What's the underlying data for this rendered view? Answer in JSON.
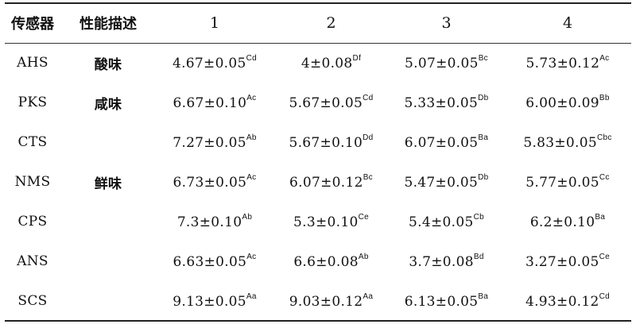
{
  "headers": [
    "传感器",
    "性能描述",
    "1",
    "2",
    "3",
    "4"
  ],
  "rows": [
    {
      "sensor": "AHS",
      "desc": "酸味",
      "cells": [
        {
          "v": "4.67±0.05",
          "s": "Cd"
        },
        {
          "v": "4±0.08",
          "s": "Df"
        },
        {
          "v": "5.07±0.05",
          "s": "Bc"
        },
        {
          "v": "5.73±0.12",
          "s": "Ac"
        }
      ]
    },
    {
      "sensor": "PKS",
      "desc": "咸味",
      "cells": [
        {
          "v": "6.67±0.10",
          "s": "Ac"
        },
        {
          "v": "5.67±0.05",
          "s": "Cd"
        },
        {
          "v": "5.33±0.05",
          "s": "Db"
        },
        {
          "v": "6.00±0.09",
          "s": "Bb"
        }
      ]
    },
    {
      "sensor": "CTS",
      "desc": "",
      "cells": [
        {
          "v": "7.27±0.05",
          "s": "Ab"
        },
        {
          "v": "5.67±0.10",
          "s": "Dd"
        },
        {
          "v": "6.07±0.05",
          "s": "Ba"
        },
        {
          "v": "5.83±0.05",
          "s": "Cbc"
        }
      ]
    },
    {
      "sensor": "NMS",
      "desc": "鲜味",
      "cells": [
        {
          "v": "6.73±0.05",
          "s": "Ac"
        },
        {
          "v": "6.07±0.12",
          "s": "Bc"
        },
        {
          "v": "5.47±0.05",
          "s": "Db"
        },
        {
          "v": "5.77±0.05",
          "s": "Cc"
        }
      ]
    },
    {
      "sensor": "CPS",
      "desc": "",
      "cells": [
        {
          "v": "7.3±0.10",
          "s": "Ab"
        },
        {
          "v": "5.3±0.10",
          "s": "Ce"
        },
        {
          "v": "5.4±0.05",
          "s": "Cb"
        },
        {
          "v": "6.2±0.10",
          "s": "Ba"
        }
      ]
    },
    {
      "sensor": "ANS",
      "desc": "",
      "cells": [
        {
          "v": "6.63±0.05",
          "s": "Ac"
        },
        {
          "v": "6.6±0.08",
          "s": "Ab"
        },
        {
          "v": "3.7±0.08",
          "s": "Bd"
        },
        {
          "v": "3.27±0.05",
          "s": "Ce"
        }
      ]
    },
    {
      "sensor": "SCS",
      "desc": "",
      "cells": [
        {
          "v": "9.13±0.05",
          "s": "Aa"
        },
        {
          "v": "9.03±0.12",
          "s": "Aa"
        },
        {
          "v": "6.13±0.05",
          "s": "Ba"
        },
        {
          "v": "4.93±0.12",
          "s": "Cd"
        }
      ]
    }
  ]
}
